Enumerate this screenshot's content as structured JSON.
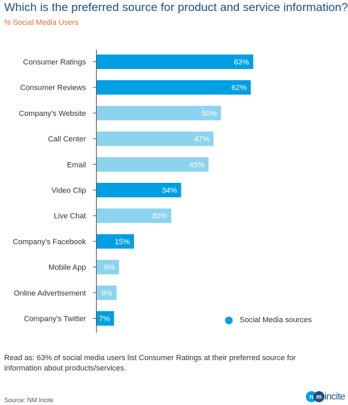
{
  "title": "Which is the preferred source for product and service information?",
  "subtitle": "% Social Media Users",
  "colors": {
    "title": "#1e4d86",
    "subtitle": "#e86a2b",
    "social_bar": "#009fe3",
    "other_bar": "#8cd3ef",
    "axis": "#555555"
  },
  "chart_data": {
    "type": "bar",
    "orientation": "horizontal",
    "categories": [
      "Consumer Ratings",
      "Consumer Reviews",
      "Company's Website",
      "Call Center",
      "Email",
      "Video Clip",
      "Live Chat",
      "Company's Facebook",
      "Mobile App",
      "Online Advertisement",
      "Company's Twitter"
    ],
    "values": [
      63,
      62,
      50,
      47,
      45,
      34,
      30,
      15,
      9,
      8,
      7
    ],
    "value_labels": [
      "63%",
      "62%",
      "50%",
      "47%",
      "45%",
      "34%",
      "30%",
      "15%",
      "9%",
      "8%",
      "7%"
    ],
    "social_media_source": [
      true,
      true,
      false,
      false,
      false,
      true,
      false,
      true,
      false,
      false,
      true
    ],
    "unit": "%",
    "xlim": [
      0,
      100
    ],
    "grid": false,
    "legend": {
      "label": "Social Media sources",
      "placement": "bottom-right"
    }
  },
  "note": "Read as: 63% of social media users list Consumer Ratings at their preferred source for information about products/services.",
  "source": "Source: NM Incite",
  "logo": {
    "initials": [
      "n",
      "m"
    ],
    "text": "incite"
  }
}
